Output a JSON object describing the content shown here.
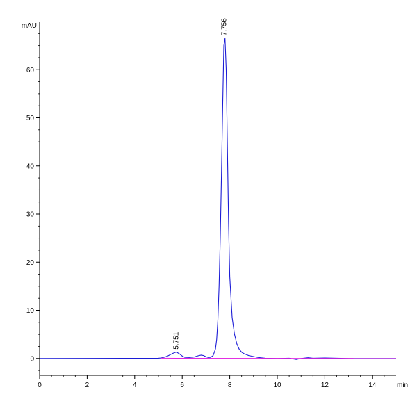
{
  "chart_data": {
    "type": "line",
    "title": "",
    "xlabel": "min",
    "ylabel": "mAU",
    "xlim": [
      0,
      15
    ],
    "ylim": [
      -3.5,
      70
    ],
    "x_ticks": [
      0,
      2,
      4,
      6,
      8,
      10,
      12,
      14
    ],
    "y_ticks": [
      0,
      10,
      20,
      30,
      40,
      50,
      60
    ],
    "grid": false,
    "legend": "none",
    "peak_labels": [
      {
        "x": 5.751,
        "y": 1.3,
        "text": "5.751"
      },
      {
        "x": 7.756,
        "y": 66.5,
        "text": "7.756"
      }
    ],
    "series": [
      {
        "color": "#1c1cd6",
        "x": [
          0,
          5.0,
          5.1,
          5.2,
          5.3,
          5.4,
          5.5,
          5.6,
          5.7,
          5.75,
          5.8,
          5.9,
          6.0,
          6.1,
          6.3,
          6.5,
          6.7,
          6.8,
          6.9,
          7.0,
          7.1,
          7.2,
          7.3,
          7.4,
          7.45,
          7.5,
          7.55,
          7.6,
          7.65,
          7.7,
          7.75,
          7.8,
          7.85,
          7.9,
          7.95,
          8.0,
          8.1,
          8.2,
          8.3,
          8.4,
          8.5,
          8.6,
          8.7,
          8.8,
          9.0,
          9.2,
          9.5,
          10.0,
          10.5,
          10.8,
          11.0,
          11.3,
          11.5,
          12.0,
          13.0,
          14.0,
          15.0
        ],
        "y": [
          0.0,
          0.05,
          0.1,
          0.2,
          0.35,
          0.55,
          0.8,
          1.05,
          1.25,
          1.3,
          1.2,
          0.9,
          0.5,
          0.25,
          0.2,
          0.3,
          0.6,
          0.7,
          0.6,
          0.35,
          0.2,
          0.25,
          0.6,
          2.0,
          4.0,
          8.0,
          15.0,
          25.0,
          38.0,
          52.0,
          65.0,
          66.5,
          60.0,
          44.0,
          28.0,
          17.0,
          8.5,
          5.0,
          3.0,
          1.9,
          1.3,
          1.0,
          0.8,
          0.6,
          0.4,
          0.2,
          0.05,
          0.0,
          0.05,
          -0.2,
          0.0,
          0.15,
          0.05,
          0.1,
          0.0,
          0.0,
          0.0
        ]
      },
      {
        "color": "#e020e0",
        "x": [
          5.1,
          15.0
        ],
        "y": [
          0.05,
          0.0
        ]
      }
    ]
  }
}
